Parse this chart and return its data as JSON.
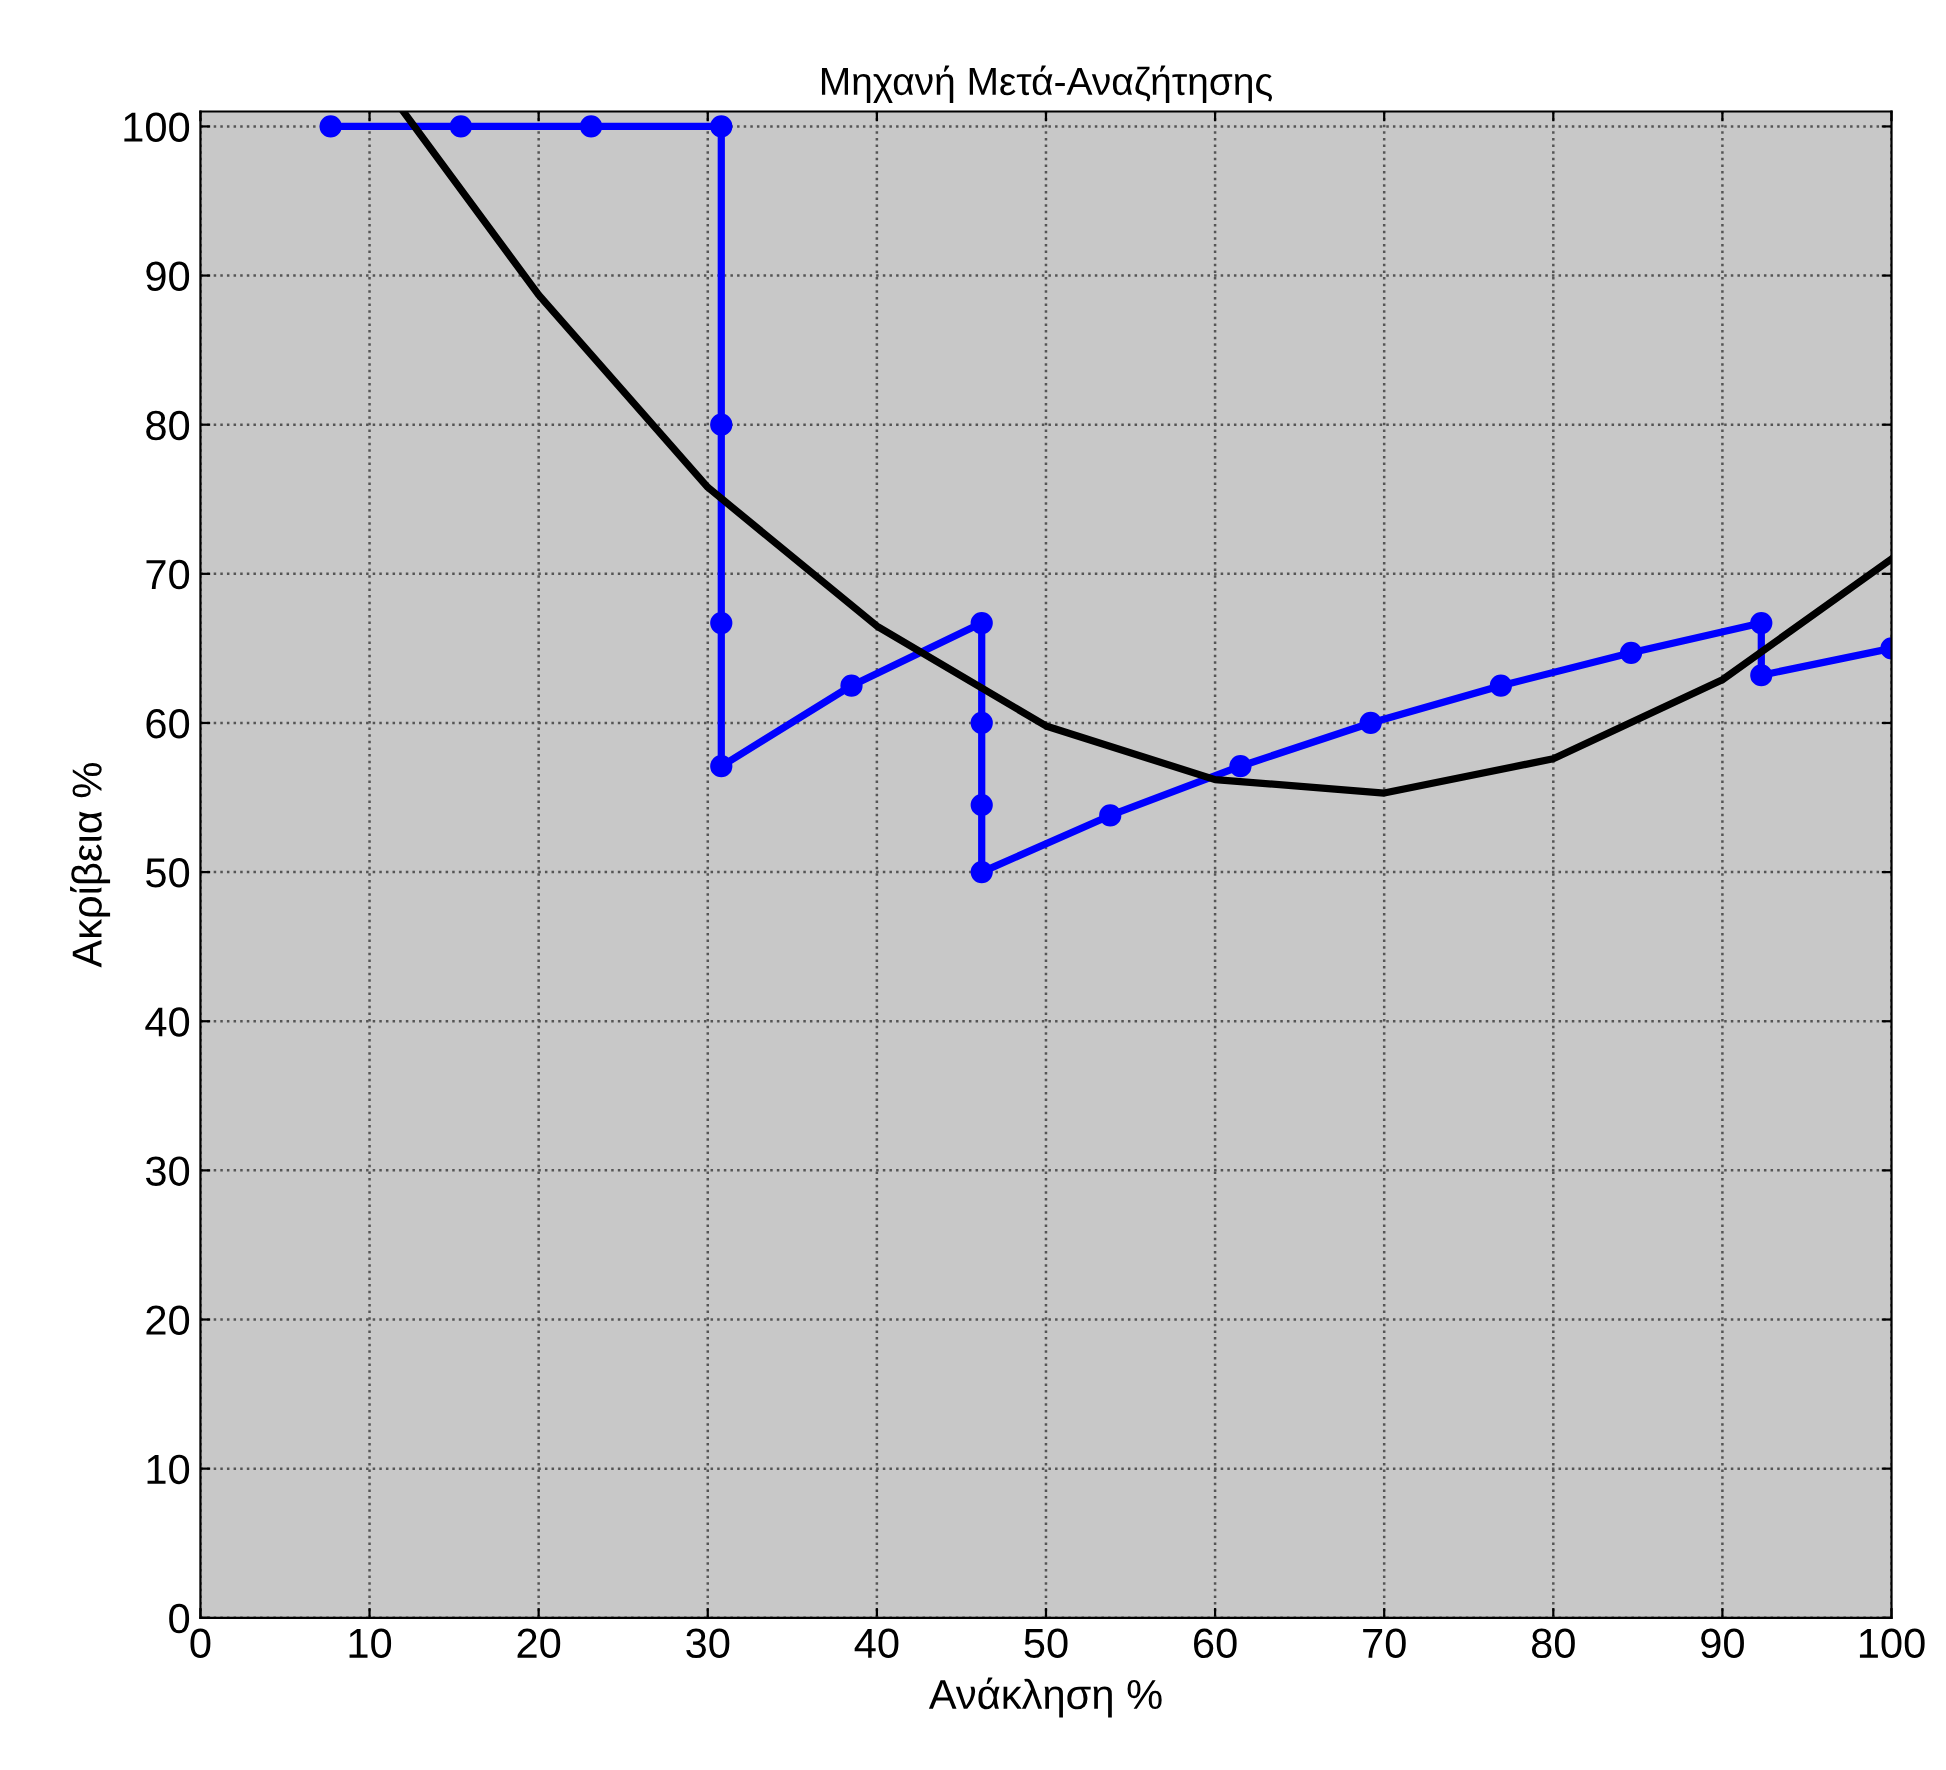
{
  "chart_data": {
    "type": "line",
    "title": "Μηχανή Μετά-Αναζήτησης",
    "xlabel": "Ανάκληση %",
    "ylabel": "Ακρίβεια %",
    "xlim": [
      0,
      100
    ],
    "ylim": [
      0,
      101
    ],
    "xticks": [
      0,
      10,
      20,
      30,
      40,
      50,
      60,
      70,
      80,
      90,
      100
    ],
    "yticks": [
      0,
      10,
      20,
      30,
      40,
      50,
      60,
      70,
      80,
      90,
      100
    ],
    "grid": true,
    "series": [
      {
        "color": "#0000ff",
        "marker": "circle",
        "x": [
          7.7,
          15.4,
          23.1,
          30.8,
          30.8,
          30.8,
          30.8,
          38.5,
          46.2,
          46.2,
          46.2,
          46.2,
          53.8,
          61.5,
          69.2,
          76.9,
          84.6,
          92.3,
          92.3,
          100
        ],
        "values": [
          100,
          100,
          100,
          100,
          80,
          66.7,
          57.1,
          62.5,
          66.7,
          60,
          54.5,
          50,
          53.8,
          57.1,
          60,
          62.5,
          64.7,
          66.7,
          63.2,
          65
        ]
      },
      {
        "color": "#000000",
        "x": [
          12,
          20,
          30,
          40,
          50,
          60,
          70,
          80,
          90,
          100
        ],
        "values": [
          101,
          88.7,
          75.8,
          66.5,
          59.8,
          56.2,
          55.3,
          57.6,
          62.9,
          71
        ]
      }
    ]
  }
}
